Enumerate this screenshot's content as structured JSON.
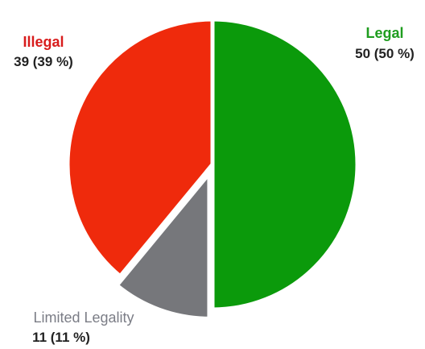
{
  "chart_data": {
    "type": "pie",
    "slices": [
      {
        "name": "Legal",
        "value": 50,
        "value_label": "50 (50 %)",
        "color": "#0b9a0b",
        "label_color": "#1f9d1f"
      },
      {
        "name": "Limited Legality",
        "value": 11,
        "value_label": "11 (11 %)",
        "color": "#76777b",
        "label_color": "#7b7d86"
      },
      {
        "name": "Illegal",
        "value": 39,
        "value_label": "39 (39 %)",
        "color": "#ef2a0c",
        "label_color": "#d81c1c"
      }
    ],
    "start_angle_deg": 0,
    "direction": "clockwise",
    "exploded": "Limited Legality",
    "legend": "none"
  }
}
